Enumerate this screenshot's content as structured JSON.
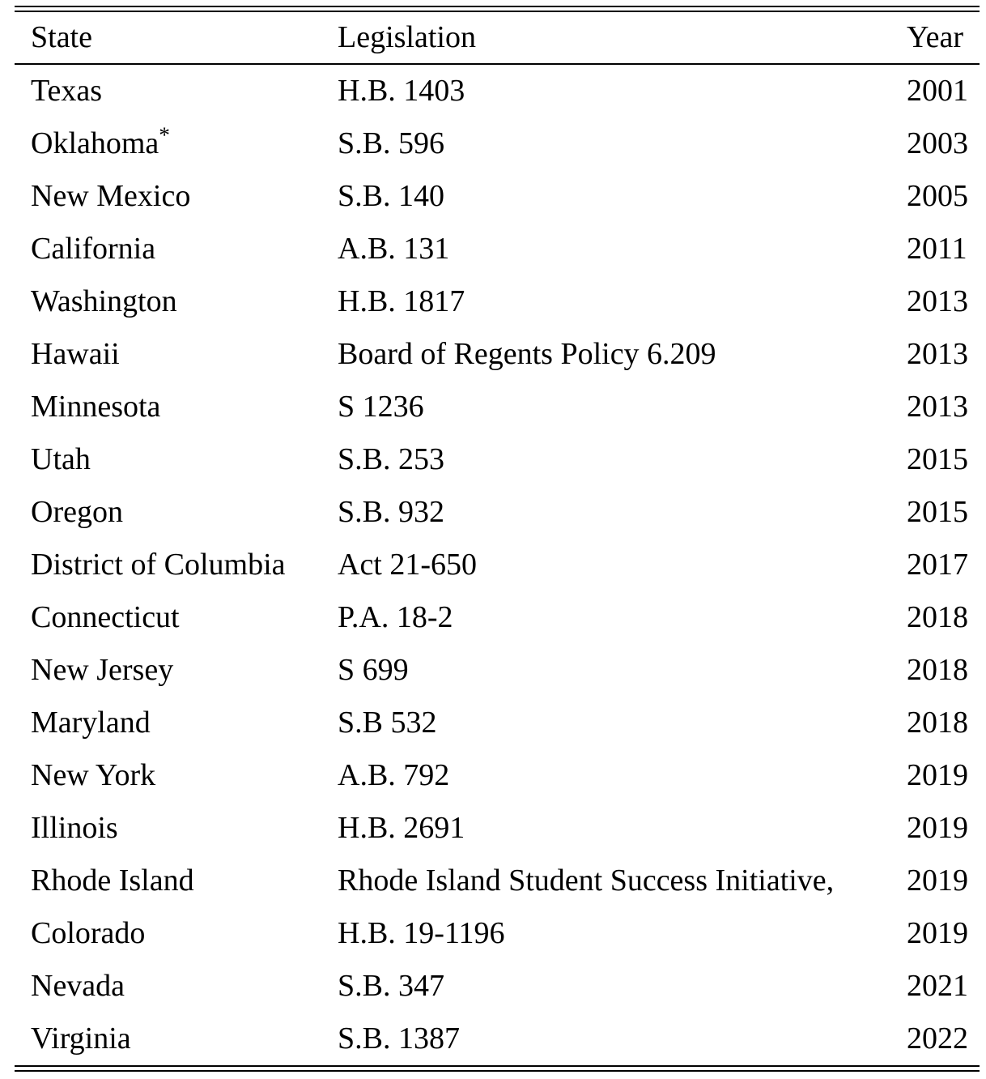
{
  "colors": {
    "background": "#ffffff",
    "text": "#000000",
    "rules": "#000000"
  },
  "table": {
    "columns": [
      "State",
      "Legislation",
      "Year"
    ],
    "rows": [
      {
        "state": "Texas",
        "legislation": "H.B. 1403",
        "year": "2001"
      },
      {
        "state": "Oklahoma",
        "marker": "*",
        "legislation": "S.B. 596",
        "year": "2003"
      },
      {
        "state": "New Mexico",
        "legislation": "S.B. 140",
        "year": "2005"
      },
      {
        "state": "California",
        "legislation": "A.B. 131",
        "year": "2011"
      },
      {
        "state": "Washington",
        "legislation": "H.B. 1817",
        "year": "2013"
      },
      {
        "state": "Hawaii",
        "legislation": "Board of Regents Policy 6.209",
        "year": "2013"
      },
      {
        "state": "Minnesota",
        "legislation": "S 1236",
        "year": "2013"
      },
      {
        "state": "Utah",
        "legislation": "S.B. 253",
        "year": "2015"
      },
      {
        "state": "Oregon",
        "legislation": "S.B. 932",
        "year": "2015"
      },
      {
        "state": "District of Columbia",
        "legislation": "Act 21-650",
        "year": "2017"
      },
      {
        "state": "Connecticut",
        "legislation": "P.A. 18-2",
        "year": "2018"
      },
      {
        "state": "New Jersey",
        "legislation": "S 699",
        "year": "2018"
      },
      {
        "state": "Maryland",
        "legislation": "S.B 532",
        "year": "2018"
      },
      {
        "state": "New York",
        "legislation": "A.B. 792",
        "year": "2019"
      },
      {
        "state": "Illinois",
        "legislation": "H.B. 2691",
        "year": "2019"
      },
      {
        "state": "Rhode Island",
        "legislation": "Rhode Island Student Success Initiative,",
        "year": "2019"
      },
      {
        "state": "Colorado",
        "legislation": "H.B. 19-1196",
        "year": "2019"
      },
      {
        "state": "Nevada",
        "legislation": "S.B. 347",
        "year": "2021"
      },
      {
        "state": "Virginia",
        "legislation": "S.B. 1387",
        "year": "2022"
      }
    ]
  }
}
